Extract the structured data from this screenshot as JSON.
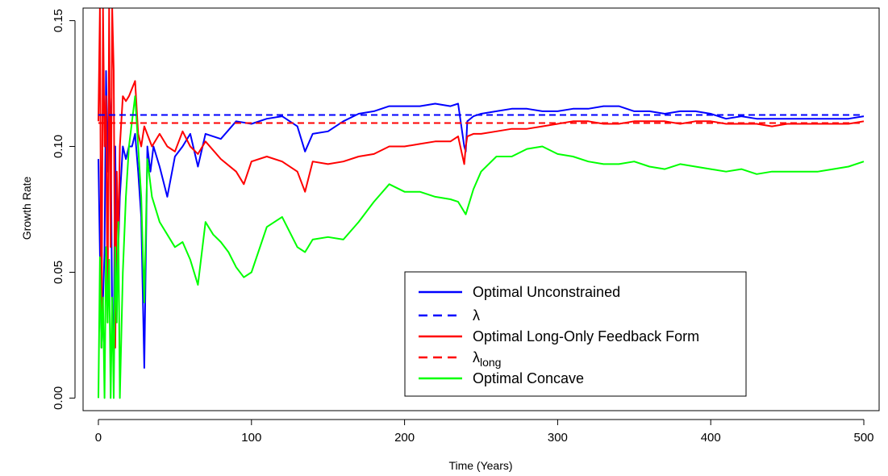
{
  "chart_data": {
    "type": "line",
    "title": "",
    "xlabel": "Time (Years)",
    "ylabel": "Growth Rate",
    "xlim": [
      -10,
      510
    ],
    "ylim": [
      -0.005,
      0.155
    ],
    "x_ticks": [
      0,
      100,
      200,
      300,
      400,
      500
    ],
    "x_tick_labels": [
      "0",
      "100",
      "200",
      "300",
      "400",
      "500"
    ],
    "y_ticks": [
      0.0,
      0.05,
      0.1,
      0.15
    ],
    "y_tick_labels": [
      "0.00",
      "0.05",
      "0.10",
      "0.15"
    ],
    "grid": false,
    "legend_placement": "bottom-right",
    "legend": [
      {
        "label": "Optimal Unconstrained",
        "color": "#0000FF",
        "dash": "solid"
      },
      {
        "label": "λ",
        "color": "#0000FF",
        "dash": "dashed"
      },
      {
        "label": "Optimal Long-Only Feedback Form",
        "color": "#FF0000",
        "dash": "solid"
      },
      {
        "label": "λ",
        "sub": "long",
        "color": "#FF0000",
        "dash": "dashed"
      },
      {
        "label": "Optimal Concave",
        "color": "#00FF00",
        "dash": "solid"
      }
    ],
    "hlines": [
      {
        "name": "λ",
        "y": 0.1125,
        "color": "#0000FF",
        "dash": "dashed"
      },
      {
        "name": "λ_long",
        "y": 0.1093,
        "color": "#FF0000",
        "dash": "dashed"
      }
    ],
    "series": [
      {
        "name": "Optimal Unconstrained",
        "color": "#0000FF",
        "x": [
          0,
          2,
          4,
          5,
          6,
          7,
          8,
          9,
          10,
          11,
          12,
          13,
          14,
          15,
          16,
          18,
          20,
          22,
          24,
          26,
          28,
          30,
          32,
          34,
          36,
          40,
          45,
          50,
          55,
          60,
          65,
          70,
          80,
          90,
          100,
          110,
          120,
          130,
          135,
          140,
          150,
          160,
          170,
          180,
          190,
          200,
          210,
          220,
          230,
          235,
          239,
          240,
          241,
          245,
          250,
          260,
          270,
          280,
          290,
          300,
          310,
          320,
          330,
          340,
          350,
          360,
          370,
          380,
          390,
          400,
          410,
          420,
          430,
          440,
          450,
          460,
          470,
          480,
          490,
          500
        ],
        "y": [
          0.095,
          0.02,
          0.058,
          0.13,
          0.09,
          0.125,
          0.11,
          0.03,
          0.02,
          0.1,
          0.04,
          0.06,
          0.08,
          0.09,
          0.1,
          0.095,
          0.1,
          0.1,
          0.105,
          0.09,
          0.072,
          0.012,
          0.1,
          0.09,
          0.1,
          0.092,
          0.08,
          0.096,
          0.1,
          0.105,
          0.092,
          0.105,
          0.103,
          0.11,
          0.109,
          0.111,
          0.112,
          0.108,
          0.098,
          0.105,
          0.106,
          0.11,
          0.113,
          0.114,
          0.116,
          0.116,
          0.116,
          0.117,
          0.116,
          0.117,
          0.1,
          0.098,
          0.11,
          0.112,
          0.113,
          0.114,
          0.115,
          0.115,
          0.114,
          0.114,
          0.115,
          0.115,
          0.116,
          0.116,
          0.114,
          0.114,
          0.113,
          0.114,
          0.114,
          0.113,
          0.111,
          0.112,
          0.111,
          0.111,
          0.111,
          0.111,
          0.111,
          0.111,
          0.111,
          0.112
        ]
      },
      {
        "name": "Optimal Long-Only Feedback Form",
        "color": "#FF0000",
        "x": [
          0,
          1,
          2,
          3,
          4,
          5,
          6,
          7,
          8,
          9,
          10,
          11,
          12,
          13,
          14,
          16,
          18,
          20,
          22,
          24,
          26,
          28,
          30,
          35,
          40,
          45,
          50,
          55,
          60,
          65,
          70,
          80,
          90,
          95,
          100,
          110,
          120,
          130,
          135,
          140,
          150,
          160,
          170,
          180,
          190,
          200,
          210,
          220,
          230,
          235,
          239,
          240,
          241,
          245,
          250,
          260,
          270,
          280,
          290,
          300,
          310,
          320,
          330,
          340,
          350,
          360,
          370,
          380,
          390,
          400,
          410,
          420,
          430,
          440,
          450,
          460,
          470,
          480,
          490,
          500
        ],
        "y": [
          0.11,
          0.155,
          0.02,
          0.155,
          0.1,
          0.12,
          0.03,
          0.155,
          0.06,
          0.155,
          0.13,
          0.02,
          0.09,
          0.06,
          0.1,
          0.12,
          0.118,
          0.12,
          0.123,
          0.126,
          0.105,
          0.1,
          0.108,
          0.1,
          0.105,
          0.1,
          0.098,
          0.106,
          0.1,
          0.097,
          0.102,
          0.095,
          0.09,
          0.085,
          0.094,
          0.096,
          0.094,
          0.09,
          0.082,
          0.094,
          0.093,
          0.094,
          0.096,
          0.097,
          0.1,
          0.1,
          0.101,
          0.102,
          0.102,
          0.104,
          0.093,
          0.1,
          0.104,
          0.105,
          0.105,
          0.106,
          0.107,
          0.107,
          0.108,
          0.109,
          0.11,
          0.11,
          0.109,
          0.109,
          0.11,
          0.11,
          0.11,
          0.109,
          0.11,
          0.11,
          0.109,
          0.109,
          0.109,
          0.108,
          0.109,
          0.109,
          0.109,
          0.109,
          0.109,
          0.11
        ]
      },
      {
        "name": "Optimal Concave",
        "color": "#00FF00",
        "x": [
          0,
          1,
          2,
          3,
          4,
          5,
          6,
          7,
          8,
          9,
          10,
          11,
          12,
          13,
          14,
          16,
          18,
          20,
          22,
          24,
          26,
          28,
          30,
          32,
          35,
          40,
          45,
          50,
          55,
          60,
          65,
          70,
          75,
          80,
          85,
          90,
          95,
          100,
          110,
          120,
          130,
          135,
          140,
          150,
          160,
          170,
          180,
          190,
          200,
          210,
          220,
          230,
          235,
          240,
          245,
          250,
          260,
          270,
          280,
          290,
          300,
          310,
          320,
          330,
          340,
          350,
          360,
          370,
          380,
          390,
          400,
          410,
          420,
          430,
          440,
          450,
          460,
          470,
          480,
          490,
          500
        ],
        "y": [
          0.0,
          0.056,
          0.02,
          0.04,
          0.0,
          0.06,
          0.03,
          0.055,
          0.0,
          0.04,
          0.0,
          0.06,
          0.03,
          0.07,
          0.0,
          0.05,
          0.08,
          0.1,
          0.11,
          0.12,
          0.1,
          0.08,
          0.038,
          0.095,
          0.08,
          0.07,
          0.065,
          0.06,
          0.062,
          0.055,
          0.045,
          0.07,
          0.065,
          0.062,
          0.058,
          0.052,
          0.048,
          0.05,
          0.068,
          0.072,
          0.06,
          0.058,
          0.063,
          0.064,
          0.063,
          0.07,
          0.078,
          0.085,
          0.082,
          0.082,
          0.08,
          0.079,
          0.078,
          0.073,
          0.083,
          0.09,
          0.096,
          0.096,
          0.099,
          0.1,
          0.097,
          0.096,
          0.094,
          0.093,
          0.093,
          0.094,
          0.092,
          0.091,
          0.093,
          0.092,
          0.091,
          0.09,
          0.091,
          0.089,
          0.09,
          0.09,
          0.09,
          0.09,
          0.091,
          0.092,
          0.094
        ]
      }
    ]
  }
}
